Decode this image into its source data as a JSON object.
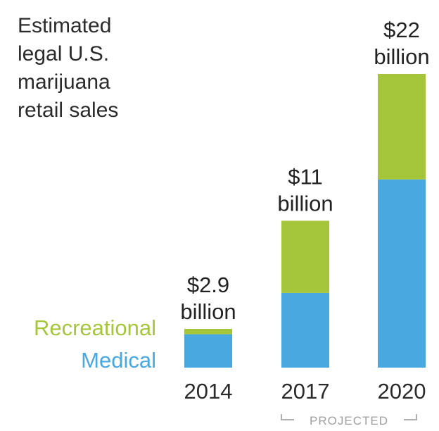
{
  "chart_data": {
    "type": "bar",
    "stacked": true,
    "title_lines": [
      "Estimated",
      "legal U.S.",
      "marijuana",
      "retail sales"
    ],
    "categories": [
      "2014",
      "2017",
      "2020"
    ],
    "series": [
      {
        "name": "Medical",
        "color": "#4aa8e0",
        "values": [
          2.5,
          5.6,
          14.1
        ]
      },
      {
        "name": "Recreational",
        "color": "#a5c63b",
        "values": [
          0.4,
          5.4,
          7.9
        ]
      }
    ],
    "totals": [
      2.9,
      11,
      22
    ],
    "total_labels": [
      {
        "amount": "$2.9",
        "unit": "billion"
      },
      {
        "amount": "$11",
        "unit": "billion"
      },
      {
        "amount": "$22",
        "unit": "billion"
      }
    ],
    "legend": [
      "Recreational",
      "Medical"
    ],
    "annotation": "PROJECTED",
    "ylim": [
      0,
      22
    ],
    "grid": false,
    "xlabel": "",
    "ylabel": ""
  }
}
